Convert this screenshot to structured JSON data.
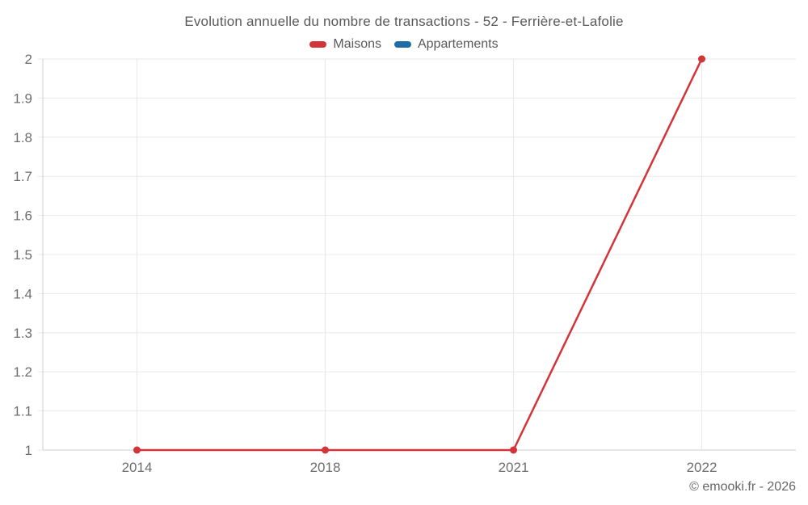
{
  "chart_data": {
    "type": "line",
    "title": "Evolution annuelle du nombre de transactions - 52 - Ferrière-et-Lafolie",
    "categories": [
      "2014",
      "2018",
      "2021",
      "2022"
    ],
    "series": [
      {
        "name": "Maisons",
        "color": "#d2343a",
        "values": [
          1,
          1,
          1,
          2
        ]
      },
      {
        "name": "Appartements",
        "color": "#1c6ea4",
        "values": []
      }
    ],
    "ylim": [
      1,
      2
    ],
    "yticks": [
      "1",
      "1.1",
      "1.2",
      "1.3",
      "1.4",
      "1.5",
      "1.6",
      "1.7",
      "1.8",
      "1.9",
      "2"
    ],
    "grid": true,
    "legend_position": "top",
    "xlabel": "",
    "ylabel": "",
    "attribution": "© emooki.fr - 2026",
    "colors": {
      "gridline": "#e8e8e8",
      "axis": "#cfcfcf",
      "tick_label": "#6e6e6e",
      "title_text": "#595959",
      "footer_text": "#666666"
    }
  }
}
